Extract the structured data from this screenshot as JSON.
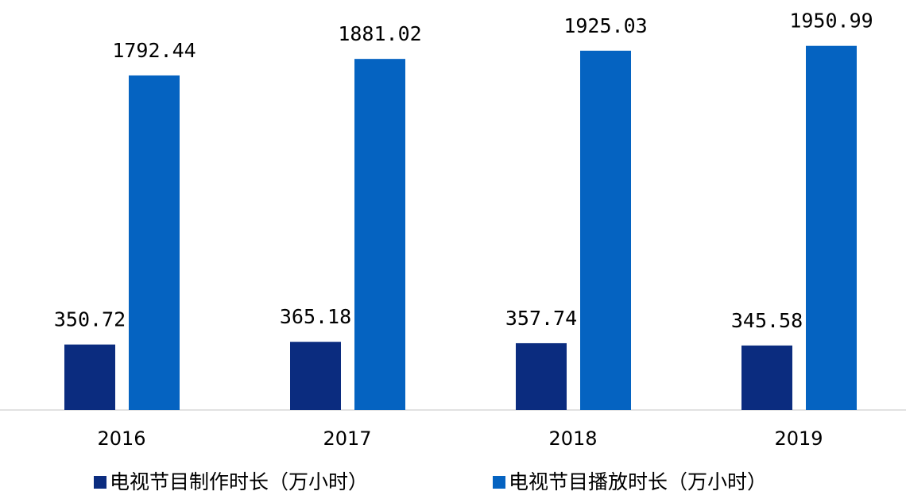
{
  "chart_data": {
    "type": "bar",
    "categories": [
      "2016",
      "2017",
      "2018",
      "2019"
    ],
    "series": [
      {
        "name": "电视节目制作时长（万小时）",
        "color": "#0b2c7f",
        "values": [
          350.72,
          365.18,
          357.74,
          345.58
        ]
      },
      {
        "name": "电视节目播放时长（万小时）",
        "color": "#0563c1",
        "values": [
          1792.44,
          1881.02,
          1925.03,
          1950.99
        ]
      }
    ]
  }
}
